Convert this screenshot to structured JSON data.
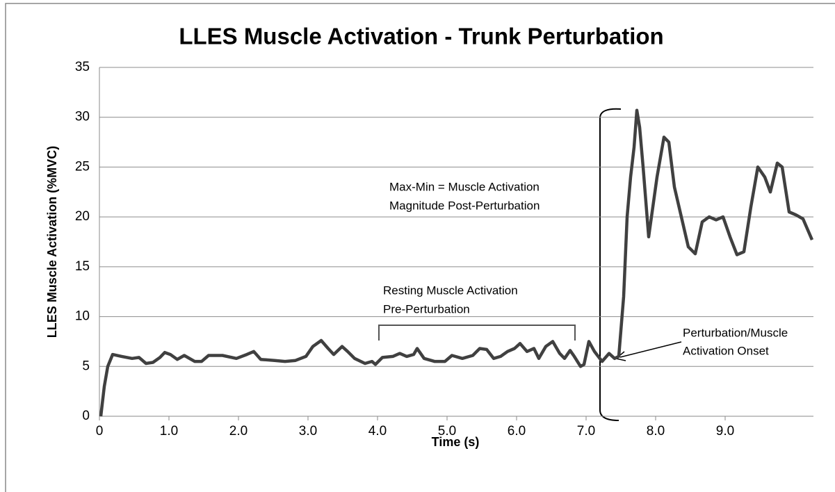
{
  "chart_data": {
    "type": "line",
    "title": "LLES Muscle Activation - Trunk Perturbation",
    "x_label": "Time (s)",
    "y_label": "LLES Muscle Activation (%MVC)",
    "color": "#404040",
    "grid": true,
    "xlim": [
      0,
      10.27
    ],
    "ylim": [
      0,
      35
    ],
    "xticks": [
      0,
      {
        "value": 1,
        "label": "1.0"
      },
      {
        "value": 2,
        "label": "2.0"
      },
      {
        "value": 3,
        "label": "3.0"
      },
      {
        "value": 4,
        "label": "4.0"
      },
      {
        "value": 5,
        "label": "5.0"
      },
      {
        "value": 6,
        "label": "6.0"
      },
      {
        "value": 7,
        "label": "7.0"
      },
      {
        "value": 8,
        "label": "8.0"
      },
      {
        "value": 9,
        "label": "9.0"
      }
    ],
    "yticks": [
      0,
      5,
      10,
      15,
      20,
      25,
      30,
      35
    ],
    "annotations": [
      "Max-Min = Muscle Activation",
      "Magnitude Post-Perturbation",
      "Resting Muscle Activation",
      "Pre-Perturbation",
      "Perturbation/Muscle",
      "Activation Onset"
    ],
    "x": [
      0.02,
      0.07,
      0.12,
      0.19,
      0.32,
      0.47,
      0.57,
      0.67,
      0.77,
      0.87,
      0.94,
      1.02,
      1.12,
      1.22,
      1.37,
      1.47,
      1.57,
      1.77,
      1.97,
      2.12,
      2.22,
      2.32,
      2.52,
      2.67,
      2.82,
      2.97,
      3.07,
      3.19,
      3.29,
      3.37,
      3.49,
      3.57,
      3.67,
      3.82,
      3.92,
      3.97,
      4.07,
      4.22,
      4.32,
      4.42,
      4.52,
      4.57,
      4.67,
      4.82,
      4.97,
      5.07,
      5.22,
      5.37,
      5.47,
      5.57,
      5.67,
      5.77,
      5.87,
      5.97,
      6.05,
      6.15,
      6.25,
      6.32,
      6.42,
      6.52,
      6.62,
      6.69,
      6.77,
      6.83,
      6.92,
      6.97,
      7.04,
      7.12,
      7.23,
      7.33,
      7.41,
      7.47,
      7.54,
      7.59,
      7.64,
      7.69,
      7.73,
      7.77,
      7.82,
      7.9,
      8.02,
      8.12,
      8.19,
      8.27,
      8.37,
      8.47,
      8.57,
      8.67,
      8.77,
      8.87,
      8.97,
      9.07,
      9.17,
      9.27,
      9.37,
      9.47,
      9.57,
      9.65,
      9.75,
      9.82,
      9.92,
      10.02,
      10.12,
      10.25
    ],
    "values": [
      0,
      3,
      5,
      6.2,
      6,
      5.8,
      5.9,
      5.3,
      5.4,
      5.9,
      6.4,
      6.2,
      5.7,
      6.1,
      5.5,
      5.5,
      6.1,
      6.1,
      5.8,
      6.2,
      6.5,
      5.7,
      5.6,
      5.5,
      5.6,
      6,
      7,
      7.6,
      6.8,
      6.2,
      7,
      6.5,
      5.8,
      5.3,
      5.5,
      5.2,
      5.9,
      6,
      6.3,
      6,
      6.2,
      6.8,
      5.8,
      5.5,
      5.5,
      6.1,
      5.8,
      6.1,
      6.8,
      6.7,
      5.8,
      6,
      6.5,
      6.8,
      7.3,
      6.5,
      6.8,
      5.8,
      7,
      7.5,
      6.3,
      5.8,
      6.6,
      6,
      5,
      5.2,
      7.5,
      6.5,
      5.5,
      6.3,
      5.8,
      6,
      12,
      20,
      24,
      27,
      30.7,
      29,
      25,
      18,
      24,
      28,
      27.5,
      23,
      20,
      17,
      16.3,
      19.5,
      20,
      19.7,
      20,
      18,
      16.2,
      16.5,
      21,
      25,
      24,
      22.5,
      25.4,
      25,
      20.5,
      20.2,
      19.8,
      17.7
    ]
  }
}
